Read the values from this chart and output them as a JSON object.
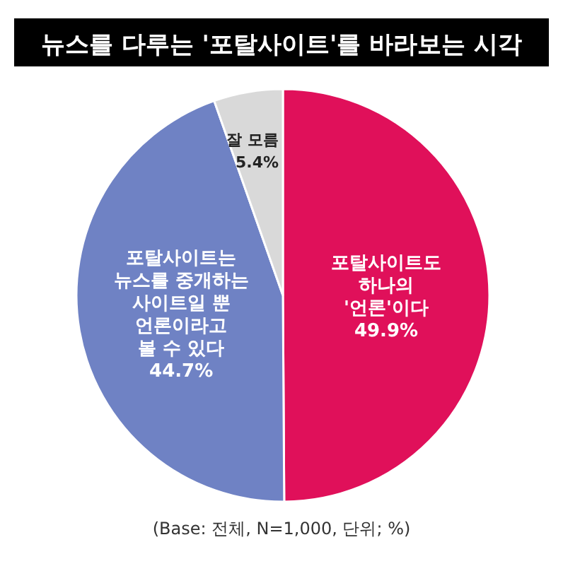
{
  "chart_data": {
    "type": "pie",
    "title": "뉴스를 다루는 '포탈사이트'를 바라보는 시각",
    "categories": [
      "포탈사이트도\n하나의\n'언론'이다",
      "포탈사이트는\n뉴스를 중개하는\n사이트일 뿐\n언론이라고\n볼 수 있다",
      "잘 모름"
    ],
    "values": [
      49.9,
      44.7,
      5.4
    ],
    "value_labels": [
      "49.9%",
      "44.7%",
      "5.4%"
    ],
    "colors": [
      "#e0105a",
      "#6f82c4",
      "#d9d9d9"
    ],
    "annotations": [
      "(Base: 전체, N=1,000, 단위; %)"
    ]
  }
}
